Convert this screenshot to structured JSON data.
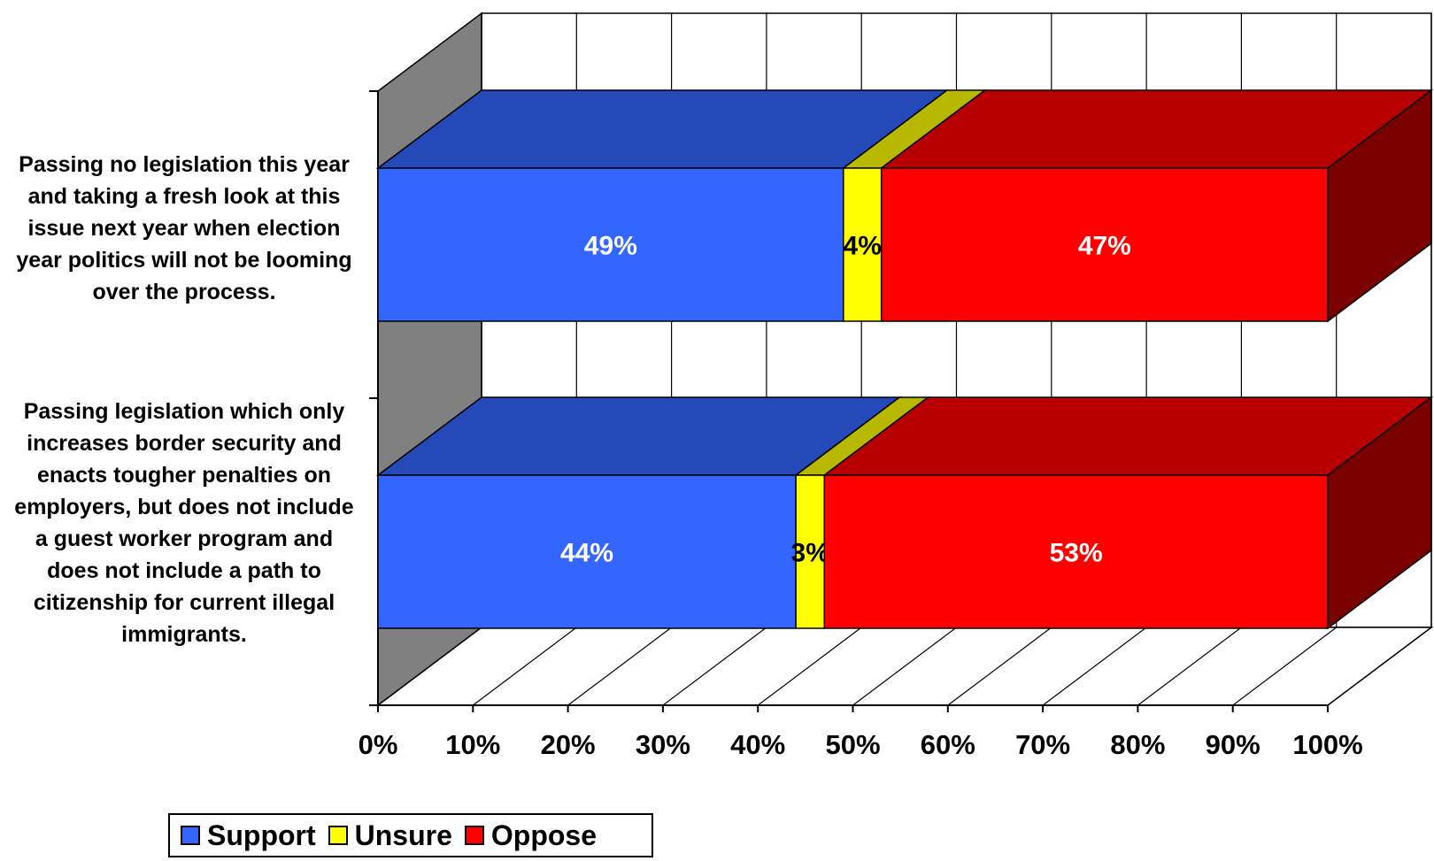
{
  "chart_data": {
    "type": "bar",
    "orientation": "horizontal",
    "stacked": "100%",
    "three_d": true,
    "categories": [
      "Passing no legislation this year and taking a fresh look at this issue next year when election year politics will not be looming over the process.",
      "Passing legislation which only increases border security and enacts tougher penalties on employers, but does not include a guest worker program and does not include a path to citizenship for current illegal immigrants."
    ],
    "series": [
      {
        "name": "Support",
        "values": [
          49,
          44
        ],
        "labels": [
          "49%",
          "44%"
        ],
        "color": "#3366ff"
      },
      {
        "name": "Unsure",
        "values": [
          4,
          3
        ],
        "labels": [
          "4%",
          "3%"
        ],
        "color": "#ffff00"
      },
      {
        "name": "Oppose",
        "values": [
          47,
          53
        ],
        "labels": [
          "47%",
          "53%"
        ],
        "color": "#ff0000"
      }
    ],
    "xlim": [
      0,
      100
    ],
    "xticks": [
      "0%",
      "10%",
      "20%",
      "30%",
      "40%",
      "50%",
      "60%",
      "70%",
      "80%",
      "90%",
      "100%"
    ],
    "grid": true,
    "legend": {
      "position": "bottom-left",
      "items": [
        "Support",
        "Unsure",
        "Oppose"
      ]
    }
  }
}
